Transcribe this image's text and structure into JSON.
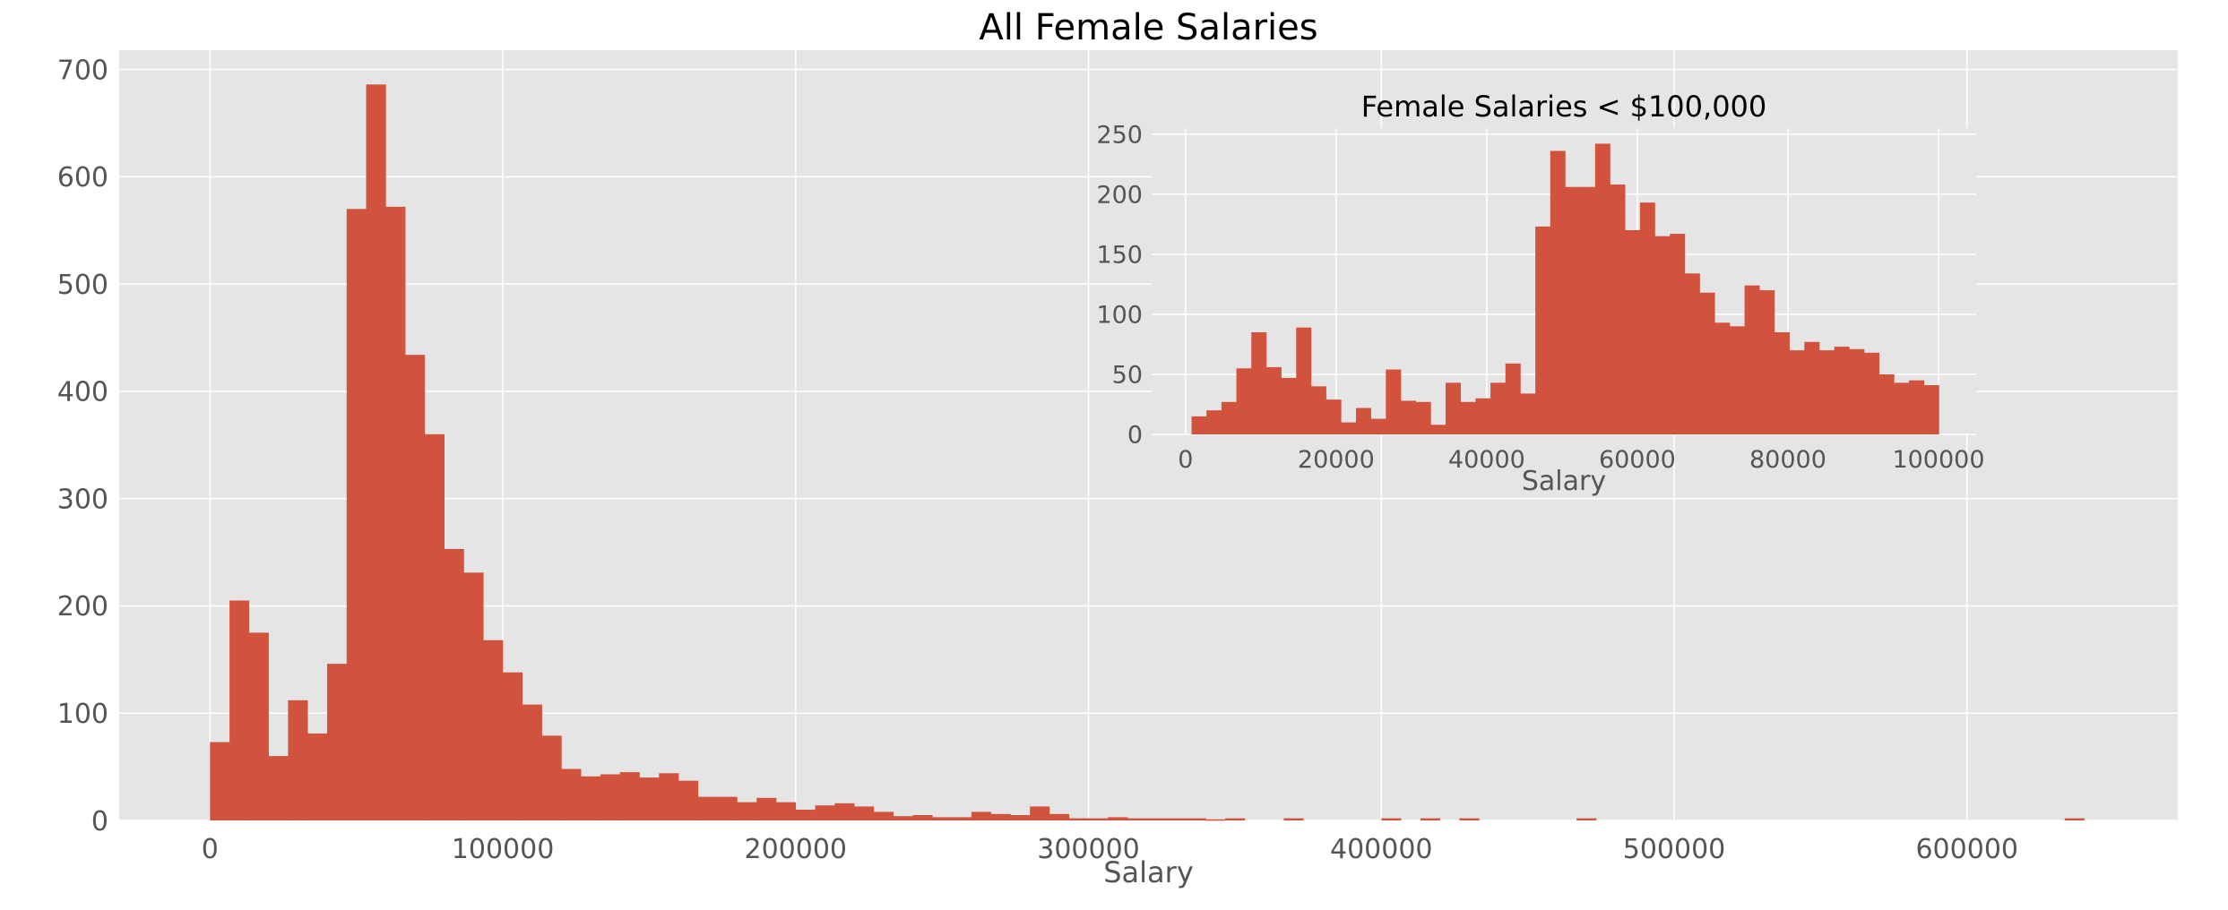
{
  "colors": {
    "bar": "#d1533d",
    "plot_bg": "#e5e5e5",
    "grid": "#ffffff",
    "tick_text": "#555555",
    "title_text": "#000000"
  },
  "chart_data": [
    {
      "type": "bar",
      "title": "All Female Salaries",
      "xlabel": "Salary",
      "ylabel": "",
      "xlim": [
        -31000,
        672000
      ],
      "ylim": [
        0,
        718
      ],
      "xticks": [
        0,
        100000,
        200000,
        300000,
        400000,
        500000,
        600000
      ],
      "xtick_labels": [
        "0",
        "100000",
        "200000",
        "300000",
        "400000",
        "500000",
        "600000"
      ],
      "yticks": [
        0,
        100,
        200,
        300,
        400,
        500,
        600,
        700
      ],
      "ytick_labels": [
        "0",
        "100",
        "200",
        "300",
        "400",
        "500",
        "600",
        "700"
      ],
      "grid": true,
      "legend": "none",
      "bin_start": 0,
      "bin_width": 6667,
      "values": [
        73,
        205,
        175,
        60,
        112,
        81,
        146,
        570,
        686,
        572,
        434,
        360,
        253,
        231,
        168,
        138,
        108,
        79,
        48,
        41,
        43,
        45,
        40,
        44,
        37,
        22,
        22,
        17,
        21,
        17,
        10,
        14,
        16,
        13,
        8,
        4,
        5,
        3,
        3,
        8,
        6,
        5,
        13,
        6,
        2,
        2,
        3,
        2,
        2,
        2,
        2,
        1,
        2,
        0,
        0,
        2,
        0,
        0,
        0,
        0,
        2,
        0,
        2,
        0,
        2,
        0,
        0,
        0,
        0,
        0,
        2,
        0,
        0,
        0,
        0,
        0,
        0,
        0,
        0,
        0,
        0,
        0,
        0,
        0,
        0,
        0,
        0,
        0,
        0,
        0,
        0,
        0,
        0,
        0,
        0,
        2,
        0,
        0,
        0,
        0
      ]
    },
    {
      "type": "bar",
      "title": "Female Salaries < $100,000",
      "xlabel": "Salary",
      "ylabel": "",
      "xlim": [
        -4500,
        105000
      ],
      "ylim": [
        0,
        255
      ],
      "xticks": [
        0,
        20000,
        40000,
        60000,
        80000,
        100000
      ],
      "xtick_labels": [
        "0",
        "20000",
        "40000",
        "60000",
        "80000",
        "100000"
      ],
      "yticks": [
        0,
        50,
        100,
        150,
        200,
        250
      ],
      "ytick_labels": [
        "0",
        "50",
        "100",
        "150",
        "200",
        "250"
      ],
      "grid": true,
      "legend": "none",
      "bin_start": 800,
      "bin_width": 1985,
      "values": [
        15,
        20,
        27,
        55,
        85,
        56,
        47,
        89,
        40,
        29,
        10,
        22,
        13,
        54,
        28,
        27,
        8,
        43,
        27,
        30,
        43,
        59,
        34,
        173,
        236,
        206,
        206,
        242,
        208,
        170,
        193,
        165,
        167,
        134,
        118,
        93,
        90,
        124,
        120,
        85,
        70,
        77,
        70,
        73,
        71,
        68,
        50,
        43,
        45,
        41
      ]
    }
  ]
}
